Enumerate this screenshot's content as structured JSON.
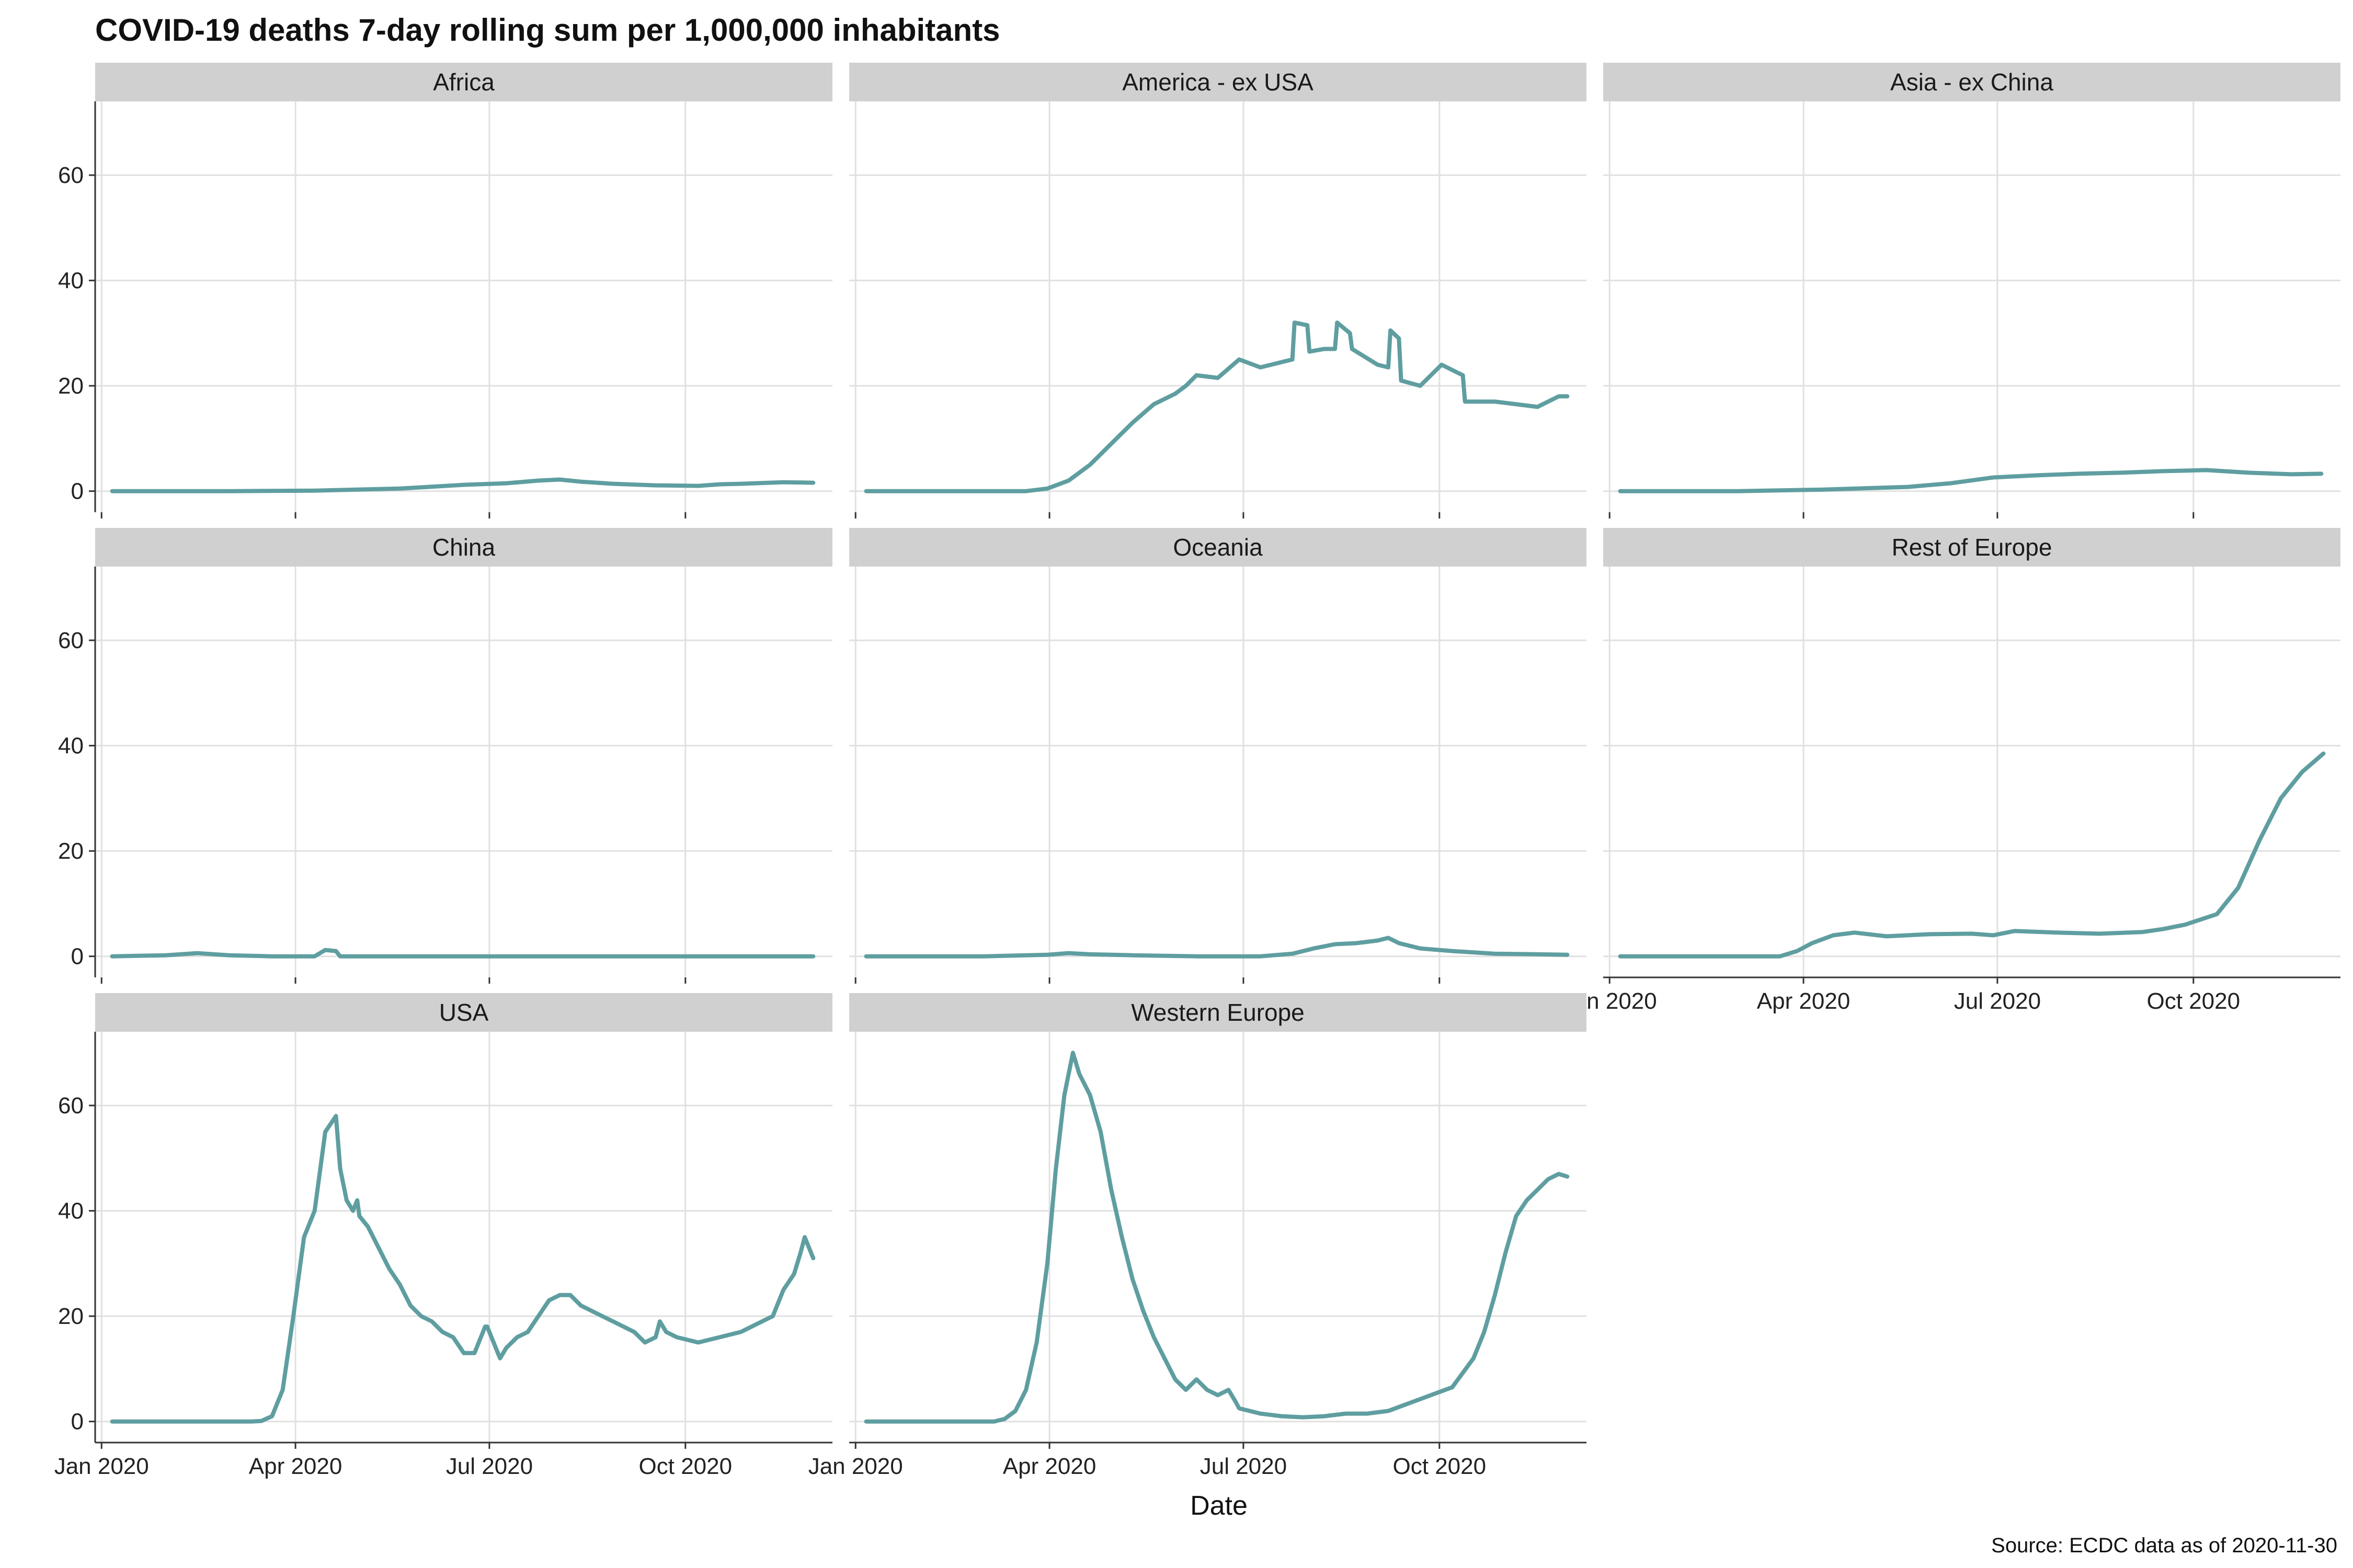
{
  "chart_data": {
    "type": "line",
    "title": "COVID-19 deaths 7-day rolling sum per 1,000,000 inhabitants",
    "xlabel": "Date",
    "ylabel": "",
    "caption": "Source: ECDC data as of 2020-11-30",
    "series_color": "#5f9ea0",
    "x_unit": "days since 2020-01-01",
    "xlim": [
      -3,
      343
    ],
    "ylim": [
      -4,
      74
    ],
    "x_ticks": [
      {
        "value": 0,
        "label": "Jan 2020"
      },
      {
        "value": 91,
        "label": "Apr 2020"
      },
      {
        "value": 182,
        "label": "Jul 2020"
      },
      {
        "value": 274,
        "label": "Oct 2020"
      }
    ],
    "y_ticks": [
      {
        "value": 0,
        "label": "0"
      },
      {
        "value": 20,
        "label": "20"
      },
      {
        "value": 40,
        "label": "40"
      },
      {
        "value": 60,
        "label": "60"
      }
    ],
    "facets": [
      {
        "name": "Africa",
        "x": [
          5,
          60,
          100,
          140,
          170,
          190,
          205,
          215,
          225,
          240,
          260,
          280,
          290,
          300,
          320,
          334
        ],
        "y": [
          0,
          0,
          0.1,
          0.5,
          1.2,
          1.5,
          2.0,
          2.2,
          1.8,
          1.4,
          1.1,
          1.0,
          1.3,
          1.4,
          1.7,
          1.6
        ]
      },
      {
        "name": "America - ex USA",
        "x": [
          5,
          80,
          90,
          100,
          110,
          120,
          130,
          140,
          150,
          155,
          160,
          170,
          180,
          190,
          200,
          205,
          206,
          212,
          213,
          220,
          225,
          226,
          232,
          233,
          245,
          250,
          251,
          255,
          256,
          265,
          275,
          285,
          286,
          300,
          310,
          320,
          330,
          334
        ],
        "y": [
          0,
          0,
          0.5,
          2,
          5,
          9,
          13,
          16.5,
          18.5,
          20,
          22,
          21.5,
          25,
          23.5,
          24.5,
          25,
          32,
          31.5,
          26.5,
          27,
          27,
          32,
          30,
          27,
          24,
          23.5,
          30.5,
          29,
          21,
          20,
          24,
          22,
          17,
          17,
          16.5,
          16,
          18,
          18
        ]
      },
      {
        "name": "Asia - ex China",
        "x": [
          5,
          60,
          100,
          140,
          160,
          180,
          200,
          220,
          240,
          260,
          280,
          300,
          320,
          334
        ],
        "y": [
          0,
          0,
          0.3,
          0.8,
          1.5,
          2.6,
          3.0,
          3.3,
          3.5,
          3.8,
          4.0,
          3.5,
          3.2,
          3.3
        ]
      },
      {
        "name": "China",
        "x": [
          5,
          30,
          45,
          60,
          80,
          100,
          105,
          110,
          112,
          140,
          200,
          260,
          334
        ],
        "y": [
          0,
          0.2,
          0.6,
          0.2,
          0,
          0,
          1.2,
          1.0,
          0,
          0,
          0,
          0,
          0
        ]
      },
      {
        "name": "Oceania",
        "x": [
          5,
          60,
          90,
          100,
          110,
          130,
          160,
          190,
          205,
          215,
          225,
          235,
          245,
          250,
          255,
          265,
          280,
          300,
          320,
          334
        ],
        "y": [
          0,
          0,
          0.3,
          0.6,
          0.4,
          0.2,
          0,
          0,
          0.5,
          1.5,
          2.3,
          2.5,
          3.0,
          3.5,
          2.5,
          1.5,
          1.0,
          0.5,
          0.4,
          0.3
        ]
      },
      {
        "name": "Rest of Europe",
        "x": [
          5,
          80,
          88,
          95,
          105,
          115,
          130,
          150,
          170,
          180,
          190,
          210,
          230,
          250,
          260,
          270,
          285,
          295,
          305,
          315,
          325,
          335
        ],
        "y": [
          0,
          0,
          1.0,
          2.5,
          4.0,
          4.5,
          3.8,
          4.2,
          4.3,
          4.0,
          4.8,
          4.5,
          4.3,
          4.6,
          5.2,
          6.0,
          8.0,
          13,
          22,
          30,
          35,
          38.5
        ]
      },
      {
        "name": "USA",
        "x": [
          5,
          70,
          75,
          80,
          85,
          90,
          95,
          100,
          105,
          110,
          112,
          115,
          118,
          120,
          121,
          125,
          130,
          135,
          140,
          145,
          150,
          155,
          160,
          165,
          170,
          175,
          180,
          181,
          186,
          187,
          190,
          195,
          200,
          205,
          210,
          215,
          220,
          225,
          230,
          235,
          240,
          250,
          255,
          260,
          262,
          265,
          270,
          280,
          290,
          300,
          310,
          315,
          320,
          325,
          328,
          330,
          334
        ],
        "y": [
          0,
          0,
          0.1,
          1,
          6,
          20,
          35,
          40,
          55,
          58,
          48,
          42,
          40,
          42,
          39,
          37,
          33,
          29,
          26,
          22,
          20,
          19,
          17,
          16,
          13,
          13,
          18,
          18,
          13,
          12,
          14,
          16,
          17,
          20,
          23,
          24,
          24,
          22,
          21,
          20,
          19,
          17,
          15,
          16,
          19,
          17,
          16,
          15,
          16,
          17,
          19,
          20,
          25,
          28,
          32,
          35,
          31
        ]
      },
      {
        "name": "Western Europe",
        "x": [
          5,
          65,
          70,
          75,
          80,
          85,
          90,
          94,
          98,
          102,
          105,
          110,
          115,
          120,
          125,
          130,
          135,
          140,
          145,
          150,
          155,
          160,
          165,
          170,
          175,
          178,
          180,
          190,
          200,
          210,
          220,
          230,
          240,
          250,
          260,
          270,
          280,
          290,
          295,
          300,
          305,
          310,
          315,
          320,
          325,
          330,
          334
        ],
        "y": [
          0,
          0,
          0.5,
          2,
          6,
          15,
          30,
          48,
          62,
          70,
          66,
          62,
          55,
          44,
          35,
          27,
          21,
          16,
          12,
          8,
          6,
          8,
          6,
          5,
          6,
          4,
          2.5,
          1.5,
          1,
          0.8,
          1,
          1.5,
          1.5,
          2,
          3.5,
          5,
          6.5,
          12,
          17,
          24,
          32,
          39,
          42,
          44,
          46,
          47,
          46.5
        ]
      }
    ]
  }
}
